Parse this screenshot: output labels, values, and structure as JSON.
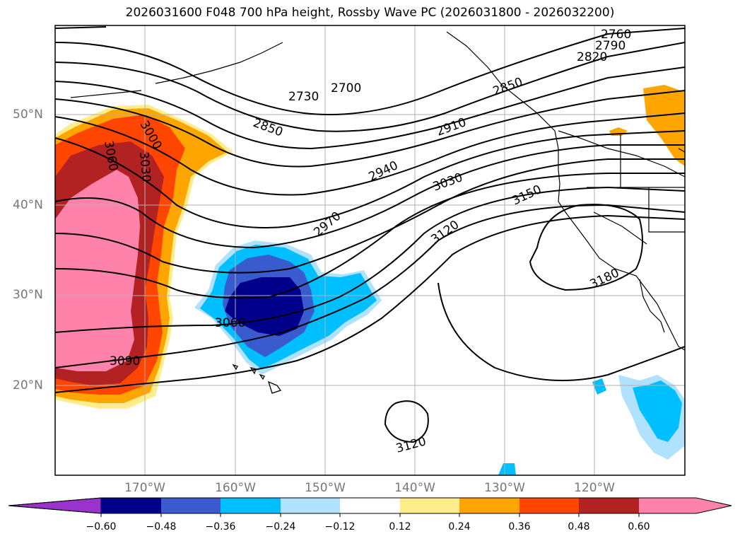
{
  "title": "2026031600 F048 700 hPa height, Rossby Wave PC (2026031800 - 2026032200)",
  "lat_labels": [
    "50°N",
    "40°N",
    "30°N",
    "20°N"
  ],
  "lon_labels": [
    "170°W",
    "160°W",
    "150°W",
    "140°W",
    "130°W",
    "120°W"
  ],
  "colorbar": {
    "ticks": [
      "−0.60",
      "−0.48",
      "−0.36",
      "−0.24",
      "−0.12",
      "0.12",
      "0.24",
      "0.36",
      "0.48",
      "0.60"
    ],
    "colors": [
      "#9a32cd",
      "#00008b",
      "#3a5bcd",
      "#00bfff",
      "#b0e2ff",
      "#ffffff",
      "#ffec8b",
      "#ffa500",
      "#ff4500",
      "#b22222",
      "#ff82ab",
      "#ff82ab"
    ]
  },
  "contour_labels": [
    "2760",
    "2790",
    "2820",
    "2850",
    "2700",
    "2730",
    "2850",
    "2910",
    "2940",
    "3030",
    "3000",
    "3030",
    "3060",
    "2970",
    "3120",
    "3150",
    "3180",
    "3060",
    "3090",
    "3120"
  ],
  "fill_colors": {
    "pink": "#ff82ab",
    "darkred": "#b22222",
    "orangered": "#ff4500",
    "orange": "#ffa500",
    "lightyellow": "#ffec8b",
    "navy": "#00008b",
    "royal": "#3a5bcd",
    "sky": "#00bfff",
    "lightsky": "#b0e2ff"
  }
}
